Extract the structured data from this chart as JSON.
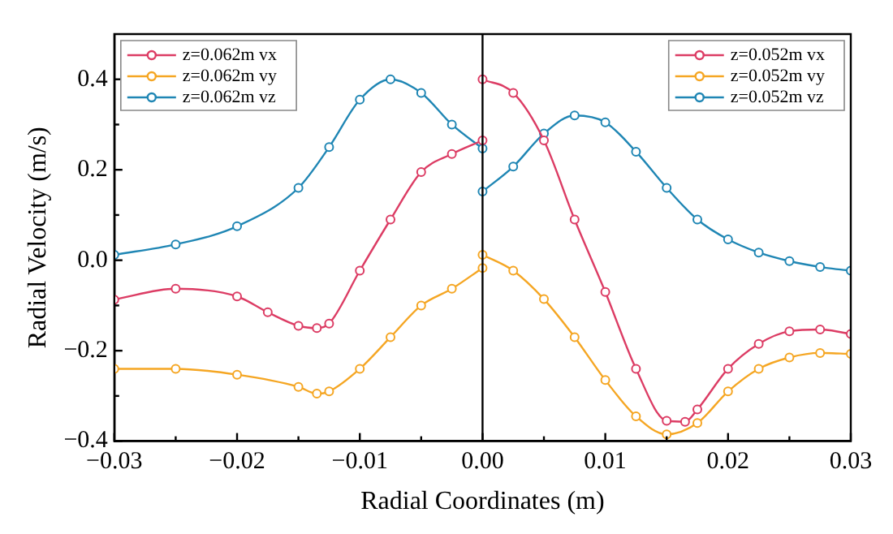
{
  "chart_data": {
    "type": "line",
    "xlabel": "Radial Coordinates (m)",
    "ylabel": "Radial Velocity (m/s)",
    "xlim": [
      -0.03,
      0.03
    ],
    "ylim": [
      -0.4,
      0.5
    ],
    "xticks": [
      {
        "value": -0.03,
        "label": "−0.03"
      },
      {
        "value": -0.025,
        "label": null
      },
      {
        "value": -0.02,
        "label": "−0.02"
      },
      {
        "value": -0.015,
        "label": null
      },
      {
        "value": -0.01,
        "label": "−0.01"
      },
      {
        "value": -0.005,
        "label": null
      },
      {
        "value": 0,
        "label": "0.00"
      },
      {
        "value": 0.005,
        "label": null
      },
      {
        "value": 0.01,
        "label": "0.01"
      },
      {
        "value": 0.015,
        "label": null
      },
      {
        "value": 0.02,
        "label": "0.02"
      },
      {
        "value": 0.025,
        "label": null
      },
      {
        "value": 0.03,
        "label": "0.03"
      }
    ],
    "yticks": [
      {
        "value": -0.4,
        "label": "−0.4"
      },
      {
        "value": -0.3,
        "label": null
      },
      {
        "value": -0.2,
        "label": "−0.2"
      },
      {
        "value": -0.1,
        "label": null
      },
      {
        "value": 0,
        "label": "0.0"
      },
      {
        "value": 0.1,
        "label": null
      },
      {
        "value": 0.2,
        "label": "0.2"
      },
      {
        "value": 0.3,
        "label": null
      },
      {
        "value": 0.4,
        "label": "0.4"
      }
    ],
    "grid": false,
    "legend": "top left",
    "marker": "circle",
    "line_style": "solid",
    "ref_lines": [
      {
        "axis": "x",
        "value": 0,
        "color": "#000000"
      }
    ],
    "series": [
      {
        "name": "z=0.062m vx",
        "color": "#dc3c64",
        "x": [
          -0.03,
          -0.025,
          -0.02,
          -0.0175,
          -0.015,
          -0.0135,
          -0.0125,
          -0.01,
          -0.0075,
          -0.005,
          -0.0025,
          0
        ],
        "values": [
          -0.087,
          -0.063,
          -0.08,
          -0.115,
          -0.145,
          -0.15,
          -0.14,
          -0.023,
          0.09,
          0.195,
          0.235,
          0.265
        ]
      },
      {
        "name": "z=0.062m vy",
        "color": "#f5a623",
        "x": [
          -0.03,
          -0.025,
          -0.02,
          -0.015,
          -0.0135,
          -0.0125,
          -0.01,
          -0.0075,
          -0.005,
          -0.0025,
          0
        ],
        "values": [
          -0.24,
          -0.24,
          -0.253,
          -0.28,
          -0.295,
          -0.29,
          -0.24,
          -0.17,
          -0.1,
          -0.063,
          -0.017
        ]
      },
      {
        "name": "z=0.062m vz",
        "color": "#1f86b4",
        "x": [
          -0.03,
          -0.025,
          -0.02,
          -0.015,
          -0.0125,
          -0.01,
          -0.0075,
          -0.005,
          -0.0025,
          0
        ],
        "values": [
          0.012,
          0.035,
          0.075,
          0.16,
          0.25,
          0.355,
          0.4,
          0.37,
          0.3,
          0.247
        ]
      },
      {
        "name": "z=0.052m vx",
        "color": "#dc3c64",
        "x": [
          0,
          0.0025,
          0.005,
          0.0075,
          0.01,
          0.0125,
          0.015,
          0.0165,
          0.0175,
          0.02,
          0.0225,
          0.025,
          0.0275,
          0.03
        ],
        "values": [
          0.4,
          0.37,
          0.265,
          0.09,
          -0.07,
          -0.24,
          -0.355,
          -0.357,
          -0.33,
          -0.24,
          -0.185,
          -0.157,
          -0.153,
          -0.163
        ]
      },
      {
        "name": "z=0.052m vy",
        "color": "#f5a623",
        "x": [
          0,
          0.0025,
          0.005,
          0.0075,
          0.01,
          0.0125,
          0.015,
          0.0175,
          0.02,
          0.0225,
          0.025,
          0.0275,
          0.03
        ],
        "values": [
          0.012,
          -0.023,
          -0.086,
          -0.17,
          -0.265,
          -0.345,
          -0.385,
          -0.36,
          -0.29,
          -0.24,
          -0.215,
          -0.205,
          -0.207
        ]
      },
      {
        "name": "z=0.052m vz",
        "color": "#1f86b4",
        "x": [
          0,
          0.0025,
          0.005,
          0.0075,
          0.01,
          0.0125,
          0.015,
          0.0175,
          0.02,
          0.0225,
          0.025,
          0.0275,
          0.03
        ],
        "values": [
          0.152,
          0.207,
          0.28,
          0.32,
          0.305,
          0.24,
          0.16,
          0.09,
          0.046,
          0.017,
          -0.002,
          -0.015,
          -0.023
        ]
      }
    ]
  }
}
